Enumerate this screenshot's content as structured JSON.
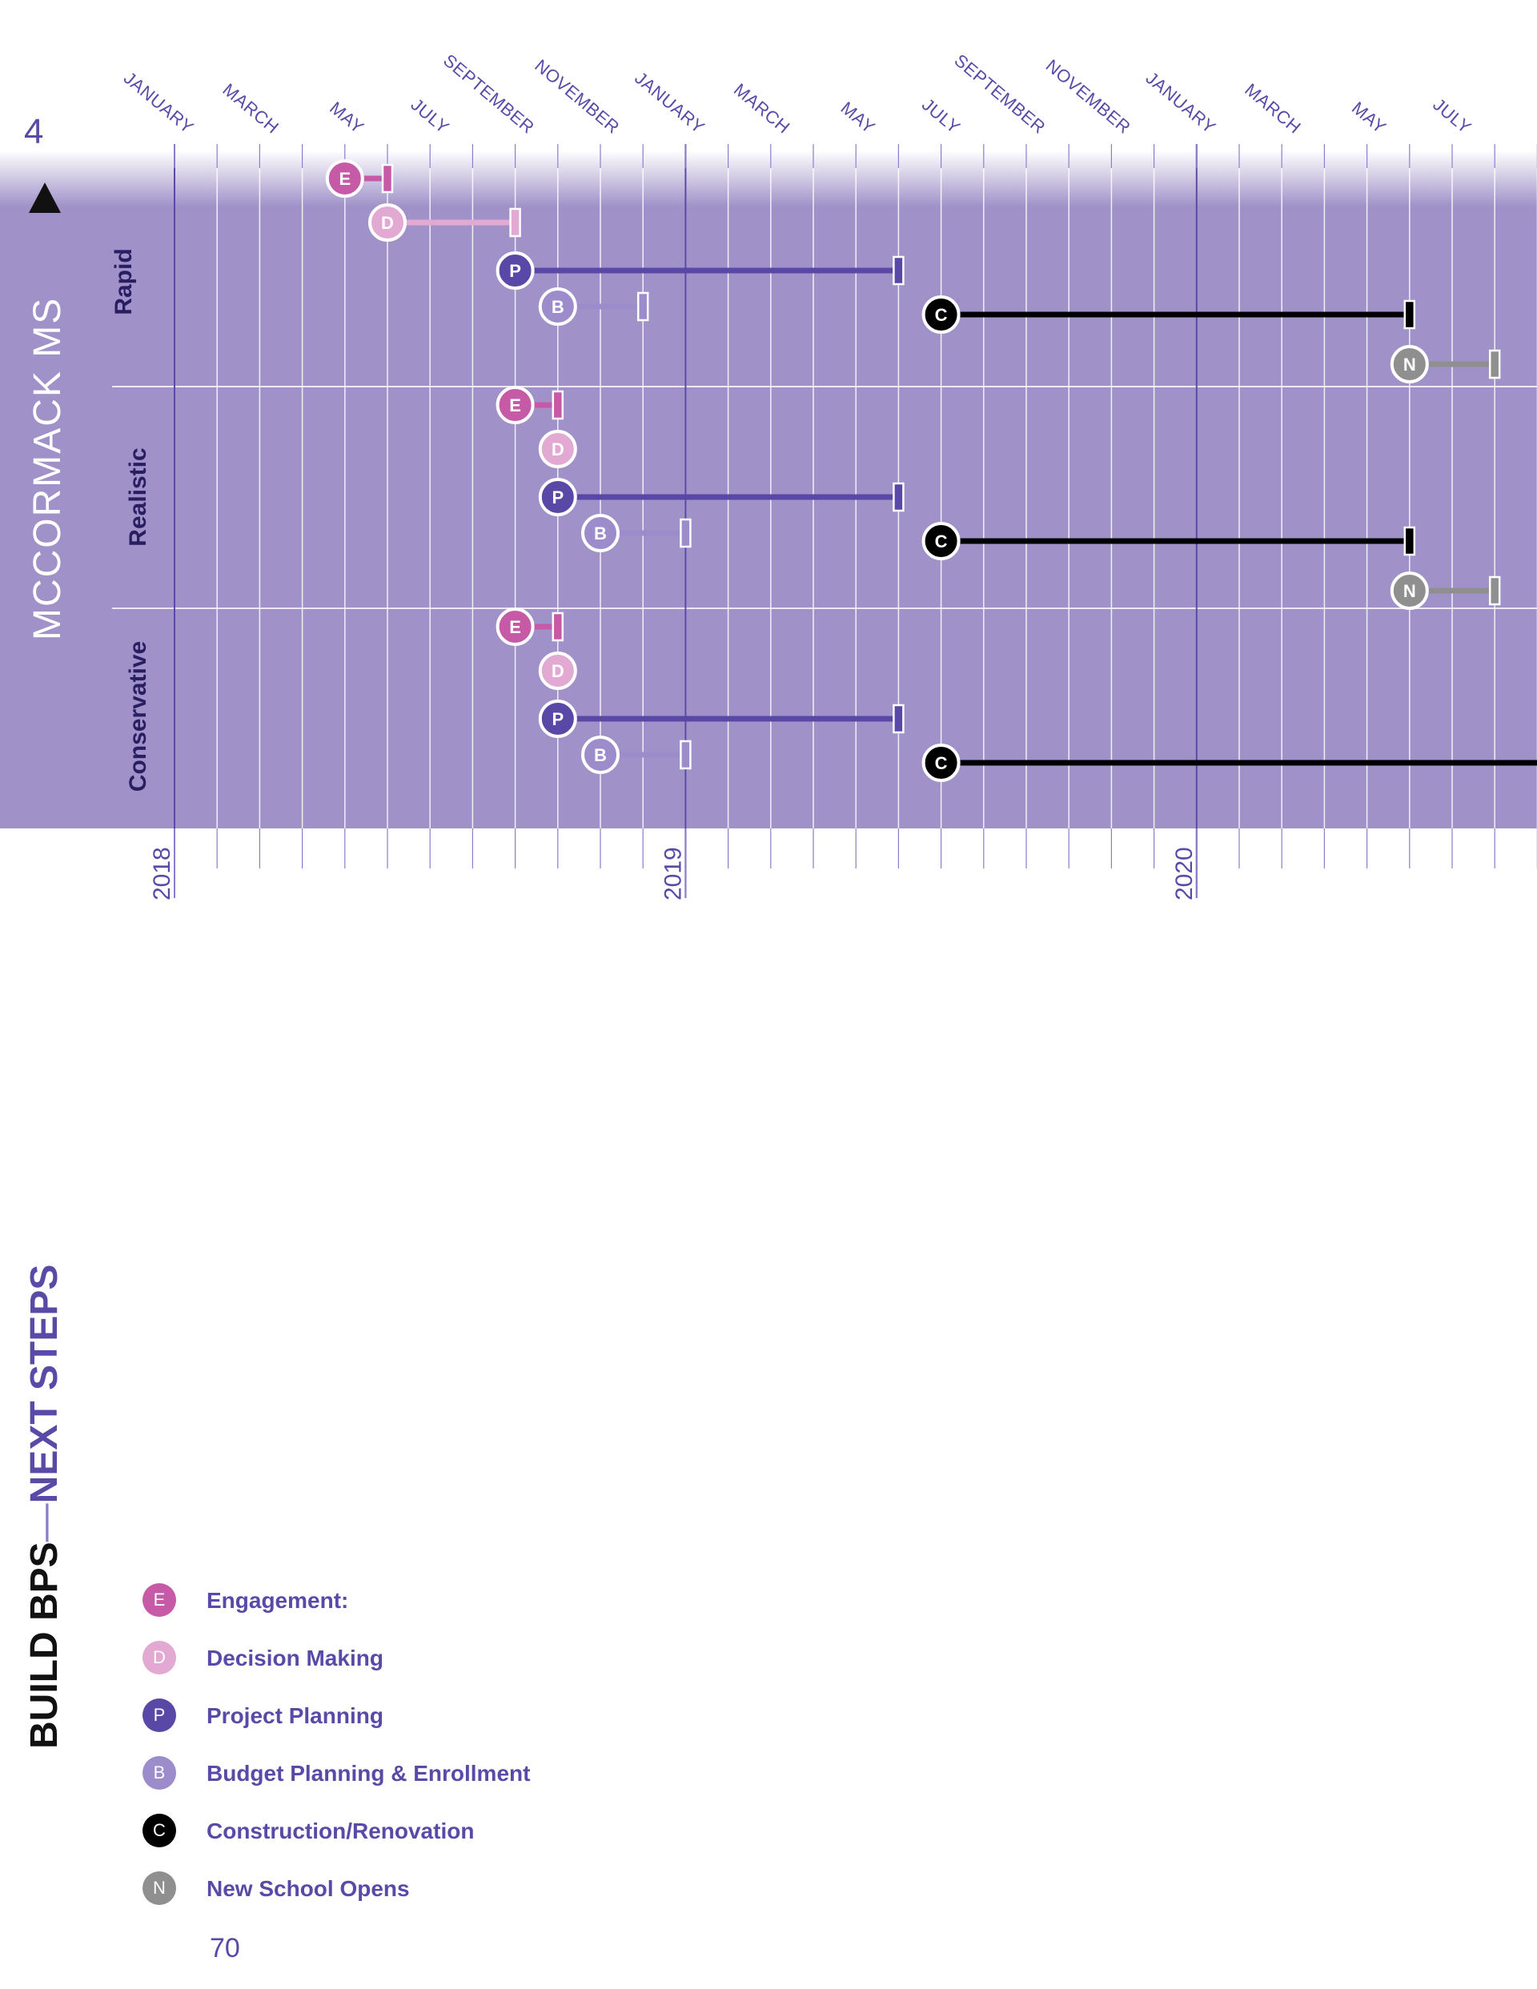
{
  "page": {
    "section_number": "4",
    "school_title": "MCCORMACK MS",
    "book_title_part1": "BUILD BPS",
    "book_title_sep": "—",
    "book_title_part2": "NEXT STEPS",
    "page_number": "70"
  },
  "chart_data": {
    "type": "gantt",
    "x_axis": {
      "month_ticks": [
        "JANUARY",
        "MARCH",
        "MAY",
        "JULY",
        "SEPTEMBER",
        "NOVEMBER",
        "JANUARY",
        "MARCH",
        "MAY",
        "JULY",
        "SEPTEMBER",
        "NOVEMBER",
        "JANUARY",
        "MARCH",
        "MAY",
        "JULY"
      ],
      "month_tick_dates": [
        "2018-01",
        "2018-03",
        "2018-05",
        "2018-07",
        "2018-09",
        "2018-11",
        "2019-01",
        "2019-03",
        "2019-05",
        "2019-07",
        "2019-09",
        "2019-11",
        "2020-01",
        "2020-03",
        "2020-05",
        "2020-07"
      ],
      "year_ticks": [
        "2018",
        "2019",
        "2020"
      ],
      "year_tick_dates": [
        "2018-01",
        "2019-01",
        "2020-01"
      ],
      "range": [
        "2018-01",
        "2020-09"
      ]
    },
    "scenarios": [
      {
        "name": "Rapid",
        "tasks": [
          {
            "code": "E",
            "start": "2018-05",
            "end": "2018-06"
          },
          {
            "code": "D",
            "start": "2018-06",
            "end": "2018-09"
          },
          {
            "code": "P",
            "start": "2018-09",
            "end": "2019-06"
          },
          {
            "code": "B",
            "start": "2018-10",
            "end": "2018-12"
          },
          {
            "code": "C",
            "start": "2019-07",
            "end": "2020-06"
          },
          {
            "code": "N",
            "start": "2020-06",
            "end": "2020-08"
          }
        ]
      },
      {
        "name": "Realistic",
        "tasks": [
          {
            "code": "E",
            "start": "2018-09",
            "end": "2018-10"
          },
          {
            "code": "D",
            "start": "2018-10",
            "end": "2018-10"
          },
          {
            "code": "P",
            "start": "2018-10",
            "end": "2019-06"
          },
          {
            "code": "B",
            "start": "2018-11",
            "end": "2019-01"
          },
          {
            "code": "C",
            "start": "2019-07",
            "end": "2020-06"
          },
          {
            "code": "N",
            "start": "2020-06",
            "end": "2020-08"
          }
        ]
      },
      {
        "name": "Conservative",
        "tasks": [
          {
            "code": "E",
            "start": "2018-09",
            "end": "2018-10"
          },
          {
            "code": "D",
            "start": "2018-10",
            "end": "2018-10"
          },
          {
            "code": "P",
            "start": "2018-10",
            "end": "2019-06"
          },
          {
            "code": "B",
            "start": "2018-11",
            "end": "2019-01"
          },
          {
            "code": "C",
            "start": "2019-07",
            "end": "2020-09"
          }
        ]
      }
    ],
    "legend": [
      {
        "code": "E",
        "label": "Engagement:",
        "color": "#c75aa6"
      },
      {
        "code": "D",
        "label": "Decision Making",
        "color": "#e2a9d2"
      },
      {
        "code": "P",
        "label": "Project Planning",
        "color": "#5a48a6"
      },
      {
        "code": "B",
        "label": "Budget Planning & Enrollment",
        "color": "#9c8ccc"
      },
      {
        "code": "C",
        "label": "Construction/Renovation",
        "color": "#000000"
      },
      {
        "code": "N",
        "label": "New School Opens",
        "color": "#8f8f8f"
      }
    ],
    "colors": {
      "band": "#a092c8",
      "accent": "#5a4aa8",
      "label_dark": "#2a1e63"
    }
  }
}
